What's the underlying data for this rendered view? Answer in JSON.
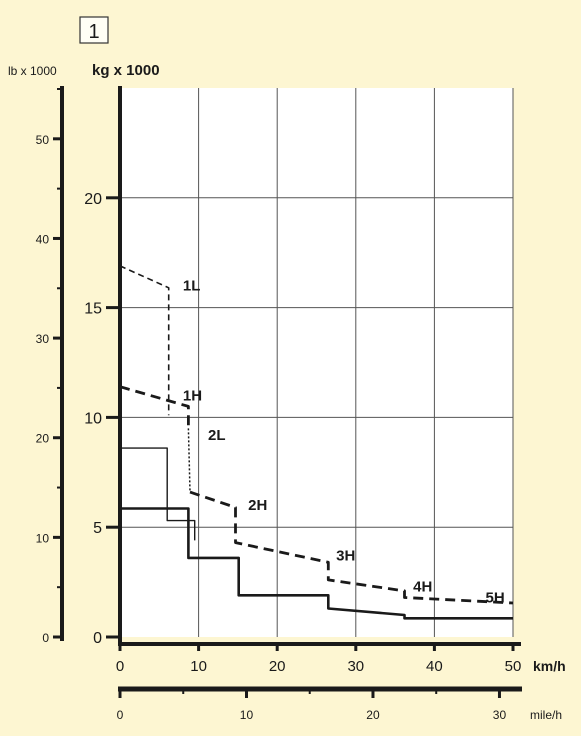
{
  "figure_number": "1",
  "colors": {
    "background": "#fdf6d2",
    "plot_area": "#ffffff",
    "grid": "#555555",
    "ink": "#1a1a1a"
  },
  "chart_data": {
    "type": "line",
    "title": "",
    "grid": true,
    "axes": {
      "y_kg": {
        "label": "kg x 1000",
        "ylim": [
          0,
          25
        ],
        "ticks": [
          0,
          5,
          10,
          15,
          20
        ]
      },
      "y_lb": {
        "label": "lb x 1000",
        "ylim": [
          0,
          55.1
        ],
        "ticks": [
          0,
          10,
          20,
          30,
          40,
          50
        ]
      },
      "x_kmh": {
        "label": "km/h",
        "xlim": [
          0,
          50
        ],
        "ticks": [
          0,
          10,
          20,
          30,
          40,
          50
        ]
      },
      "x_mph": {
        "label": "mile/h",
        "xlim": [
          0,
          31.07
        ],
        "ticks": [
          0,
          10,
          20,
          30
        ]
      }
    },
    "series": [
      {
        "name": "1L",
        "style": "dashed-thin",
        "points": [
          [
            0,
            16.9
          ],
          [
            6.2,
            15.9
          ],
          [
            6.2,
            10.1
          ]
        ]
      },
      {
        "name": "1H",
        "style": "dashed-bold",
        "points": [
          [
            0,
            11.4
          ],
          [
            8.7,
            10.5
          ],
          [
            8.7,
            9.5
          ]
        ]
      },
      {
        "name": "2L",
        "style": "dotted",
        "points": [
          [
            8.7,
            9.5
          ],
          [
            8.9,
            6.6
          ]
        ]
      },
      {
        "name": "2H",
        "style": "dashed-bold",
        "points": [
          [
            8.9,
            6.6
          ],
          [
            14.7,
            5.9
          ],
          [
            14.7,
            4.3
          ],
          [
            26.5,
            3.4
          ],
          [
            26.5,
            2.6
          ],
          [
            36.2,
            2.1
          ],
          [
            36.2,
            1.8
          ],
          [
            50,
            1.55
          ]
        ]
      },
      {
        "name": "",
        "style": "solid-thin",
        "points": [
          [
            0,
            8.6
          ],
          [
            6.0,
            8.6
          ],
          [
            6.0,
            5.3
          ],
          [
            9.5,
            5.3
          ],
          [
            9.5,
            4.4
          ]
        ]
      },
      {
        "name": "",
        "style": "solid-bold",
        "points": [
          [
            0,
            5.85
          ],
          [
            8.7,
            5.85
          ],
          [
            8.7,
            3.6
          ],
          [
            15.1,
            3.6
          ],
          [
            15.1,
            1.9
          ],
          [
            26.5,
            1.9
          ],
          [
            26.5,
            1.3
          ],
          [
            36.2,
            1.0
          ],
          [
            36.2,
            0.85
          ],
          [
            50,
            0.85
          ]
        ]
      }
    ],
    "annotations": [
      {
        "text": "1L",
        "x": 8.0,
        "y": 16.0
      },
      {
        "text": "1H",
        "x": 8.0,
        "y": 11.0
      },
      {
        "text": "2L",
        "x": 11.2,
        "y": 9.2
      },
      {
        "text": "2H",
        "x": 16.3,
        "y": 6.0
      },
      {
        "text": "3H",
        "x": 27.5,
        "y": 3.7
      },
      {
        "text": "4H",
        "x": 37.3,
        "y": 2.3
      },
      {
        "text": "5H",
        "x": 46.5,
        "y": 1.8
      }
    ]
  }
}
